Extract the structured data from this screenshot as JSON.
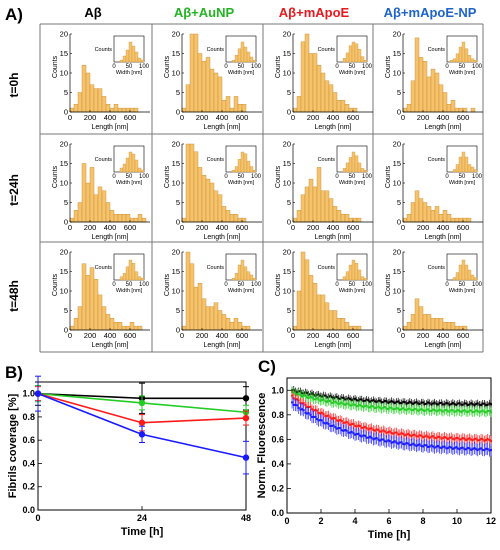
{
  "colors": {
    "bar": "#f5c36b",
    "bar_stroke": "#c6862a",
    "black": "#000000",
    "green": "#22cc22",
    "red": "#ff1a1a",
    "blue": "#1a1aff",
    "grid_border": "#777777"
  },
  "panel_a": {
    "letter": "A)",
    "columns": [
      {
        "label": "Aβ",
        "color": "#000000"
      },
      {
        "label": "Aβ+AuNP",
        "color": "#22b422"
      },
      {
        "label": "Aβ+mApoE",
        "color": "#e8191e"
      },
      {
        "label": "Aβ+mApoE-NP",
        "color": "#1e64c8"
      }
    ],
    "rows": [
      "t=0h",
      "t=24h",
      "t=48h"
    ]
  },
  "panel_b": {
    "letter": "B)"
  },
  "panel_c": {
    "letter": "C)"
  },
  "chart_data": [
    {
      "type": "bar",
      "title": "Length distribution histograms (3 times x 4 conditions)",
      "xlabel": "Length [nm]",
      "ylabel": "Counts",
      "ylim": [
        0,
        20
      ],
      "xlim": [
        0,
        800
      ],
      "xticks": [
        0,
        200,
        400,
        600
      ],
      "yticks": [
        0,
        5,
        10,
        15,
        20
      ],
      "bin_width": 40,
      "inset": {
        "xlabel": "Width [nm]",
        "ylabel": "Counts",
        "xticks": [
          0,
          50,
          100
        ]
      },
      "panels": [
        {
          "row": "t=0h",
          "column": "Aβ",
          "values": [
            1,
            2,
            5,
            12,
            10,
            7,
            6,
            6,
            4,
            2,
            1,
            2,
            1,
            1,
            1,
            1,
            1,
            0,
            0
          ],
          "inset": [
            0,
            0,
            1,
            3,
            6,
            10,
            8,
            5,
            2,
            1
          ]
        },
        {
          "row": "t=0h",
          "column": "Aβ+AuNP",
          "values": [
            1,
            7,
            20,
            20,
            15,
            13,
            14,
            11,
            10,
            9,
            3,
            4,
            1,
            4,
            2,
            2,
            0,
            0,
            0
          ],
          "inset": [
            0,
            0,
            1,
            4,
            8,
            12,
            9,
            6,
            3,
            1
          ]
        },
        {
          "row": "t=0h",
          "column": "Aβ+mApoE",
          "values": [
            1,
            4,
            18,
            20,
            15,
            15,
            12,
            10,
            8,
            7,
            5,
            3,
            3,
            2,
            1,
            1,
            0,
            0,
            0
          ],
          "inset": [
            0,
            0,
            2,
            5,
            9,
            11,
            10,
            7,
            3,
            1
          ]
        },
        {
          "row": "t=0h",
          "column": "Aβ+mApoE-NP",
          "values": [
            1,
            2,
            8,
            19,
            14,
            13,
            9,
            11,
            10,
            7,
            5,
            2,
            3,
            1,
            1,
            1,
            0,
            1,
            0
          ],
          "inset": [
            0,
            1,
            2,
            5,
            9,
            12,
            8,
            4,
            2,
            1
          ]
        },
        {
          "row": "t=24h",
          "column": "Aβ",
          "values": [
            1,
            3,
            5,
            15,
            10,
            14,
            7,
            9,
            8,
            5,
            3,
            2,
            2,
            2,
            2,
            1,
            1,
            2,
            1
          ],
          "inset": [
            0,
            0,
            2,
            4,
            7,
            10,
            9,
            6,
            2,
            1
          ]
        },
        {
          "row": "t=24h",
          "column": "Aβ+AuNP",
          "values": [
            1,
            20,
            20,
            18,
            14,
            12,
            11,
            10,
            8,
            7,
            4,
            3,
            2,
            2,
            1,
            1,
            0,
            0,
            0
          ],
          "inset": [
            0,
            0,
            1,
            3,
            7,
            11,
            10,
            6,
            3,
            1
          ]
        },
        {
          "row": "t=24h",
          "column": "Aβ+mApoE",
          "values": [
            1,
            3,
            7,
            9,
            11,
            9,
            14,
            8,
            8,
            6,
            4,
            3,
            2,
            2,
            1,
            1,
            1,
            0,
            0
          ],
          "inset": [
            0,
            0,
            2,
            5,
            8,
            11,
            9,
            5,
            2,
            1
          ]
        },
        {
          "row": "t=24h",
          "column": "Aβ+mApoE-NP",
          "values": [
            1,
            2,
            5,
            8,
            6,
            5,
            4,
            3,
            4,
            2,
            3,
            2,
            1,
            1,
            1,
            1,
            1,
            0,
            0
          ],
          "inset": [
            0,
            0,
            1,
            3,
            6,
            8,
            6,
            3,
            2,
            1
          ]
        },
        {
          "row": "t=48h",
          "column": "Aβ",
          "values": [
            1,
            3,
            6,
            17,
            14,
            16,
            13,
            9,
            6,
            4,
            3,
            2,
            2,
            1,
            1,
            2,
            1,
            1,
            0
          ],
          "inset": [
            0,
            0,
            2,
            4,
            8,
            12,
            10,
            5,
            2,
            1
          ]
        },
        {
          "row": "t=48h",
          "column": "Aβ+AuNP",
          "values": [
            1,
            20,
            17,
            11,
            12,
            8,
            6,
            6,
            7,
            5,
            4,
            3,
            2,
            3,
            2,
            1,
            1,
            0,
            0
          ],
          "inset": [
            0,
            0,
            1,
            4,
            9,
            12,
            8,
            5,
            3,
            1
          ]
        },
        {
          "row": "t=48h",
          "column": "Aβ+mApoE",
          "values": [
            1,
            10,
            20,
            18,
            14,
            12,
            9,
            9,
            7,
            5,
            5,
            3,
            3,
            2,
            1,
            1,
            1,
            0,
            0
          ],
          "inset": [
            0,
            0,
            2,
            5,
            9,
            12,
            10,
            6,
            2,
            1
          ]
        },
        {
          "row": "t=48h",
          "column": "Aβ+mApoE-NP",
          "values": [
            1,
            2,
            4,
            8,
            6,
            4,
            4,
            3,
            3,
            3,
            2,
            2,
            2,
            1,
            1,
            1,
            0,
            0,
            0
          ],
          "inset": [
            0,
            0,
            1,
            3,
            6,
            8,
            6,
            4,
            2,
            1
          ]
        }
      ]
    },
    {
      "type": "line",
      "xlabel": "Time [h]",
      "ylabel": "Fibrils coverage [%]",
      "x": [
        0,
        24,
        48
      ],
      "xlim": [
        0,
        48
      ],
      "ylim": [
        0,
        1.1
      ],
      "yticks": [
        0,
        0.2,
        0.4,
        0.6,
        0.8,
        1.0
      ],
      "series": [
        {
          "color": "#000000",
          "values": [
            1.0,
            0.96,
            0.96
          ],
          "err": [
            0.1,
            0.13,
            0.1
          ]
        },
        {
          "color": "#22cc22",
          "values": [
            1.0,
            0.92,
            0.84
          ],
          "err": [
            0.07,
            0.06,
            0.06
          ]
        },
        {
          "color": "#ff1a1a",
          "values": [
            1.0,
            0.75,
            0.79
          ],
          "err": [
            0.06,
            0.07,
            0.06
          ]
        },
        {
          "color": "#1a1aff",
          "values": [
            1.0,
            0.65,
            0.45
          ],
          "err": [
            0.15,
            0.07,
            0.14
          ]
        }
      ]
    },
    {
      "type": "scatter",
      "xlabel": "Time [h]",
      "ylabel": "Norm. Fluorescence",
      "xlim": [
        0,
        12
      ],
      "ylim": [
        0,
        1.1
      ],
      "xticks": [
        0,
        2,
        4,
        6,
        8,
        10,
        12
      ],
      "yticks": [
        0,
        0.2,
        0.4,
        0.6,
        0.8,
        1.0
      ],
      "series": [
        {
          "color": "#000000",
          "start": 1.0,
          "end": 0.88,
          "err": 0.03
        },
        {
          "color": "#22cc22",
          "start": 0.98,
          "end": 0.82,
          "err": 0.04
        },
        {
          "color": "#ff1a1a",
          "start": 0.95,
          "end": 0.58,
          "err": 0.04
        },
        {
          "color": "#1a1aff",
          "start": 0.9,
          "end": 0.5,
          "err": 0.05
        }
      ]
    }
  ]
}
